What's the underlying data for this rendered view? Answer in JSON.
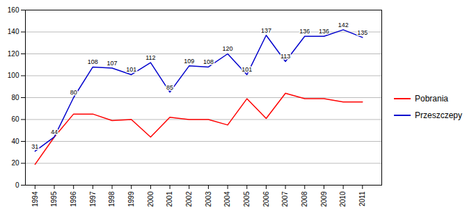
{
  "chart_data": {
    "type": "line",
    "x": [
      1994,
      1995,
      1996,
      1997,
      1998,
      1999,
      2000,
      2001,
      2002,
      2003,
      2004,
      2005,
      2006,
      2007,
      2008,
      2009,
      2010,
      2011
    ],
    "series": [
      {
        "name": "Pobrania",
        "color": "#FF0000",
        "values": [
          19,
          44,
          65,
          65,
          59,
          60,
          44,
          62,
          60,
          60,
          55,
          79,
          61,
          84,
          79,
          79,
          76,
          76
        ]
      },
      {
        "name": "Przeszczepy",
        "color": "#0000CD",
        "values": [
          31,
          44,
          80,
          108,
          107,
          101,
          112,
          85,
          109,
          108,
          120,
          101,
          137,
          113,
          136,
          136,
          142,
          135
        ],
        "data_labels": true
      }
    ],
    "xlim": [
      1993.5,
      2012.0
    ],
    "xticks": [
      1994,
      1995,
      1996,
      1997,
      1998,
      1999,
      2000,
      2001,
      2002,
      2003,
      2004,
      2005,
      2006,
      2007,
      2008,
      2009,
      2010,
      2011
    ],
    "ylim": [
      0,
      160
    ],
    "yticks": [
      0,
      20,
      40,
      60,
      80,
      100,
      120,
      140,
      160
    ],
    "grid": true,
    "legend": "right"
  }
}
